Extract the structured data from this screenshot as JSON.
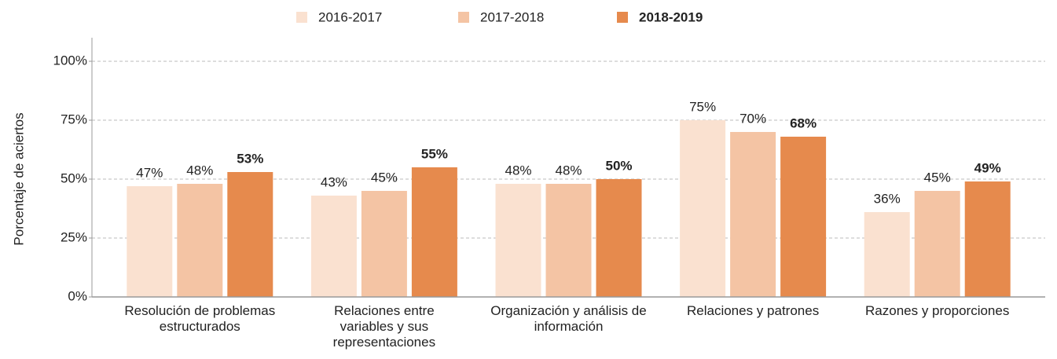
{
  "chart_data": {
    "type": "bar",
    "y_label": "Porcentaje de aciertos",
    "categories": [
      "Resolución de problemas estructurados",
      "Relaciones entre variables y sus representaciones",
      "Organización y análisis de información",
      "Relaciones y patrones",
      "Razones y proporciones"
    ],
    "series": [
      {
        "name": "2016-2017",
        "color": "#fae1d0",
        "bold": false,
        "values": [
          47,
          43,
          48,
          75,
          36
        ],
        "value_labels": [
          "47%",
          "43%",
          "48%",
          "75%",
          "36%"
        ]
      },
      {
        "name": "2017-2018",
        "color": "#f4c4a4",
        "bold": false,
        "values": [
          48,
          45,
          48,
          70,
          45
        ],
        "value_labels": [
          "48%",
          "45%",
          "48%",
          "70%",
          "45%"
        ]
      },
      {
        "name": "2018-2019",
        "color": "#e68a4d",
        "bold": true,
        "values": [
          53,
          55,
          50,
          68,
          49
        ],
        "value_labels": [
          "53%",
          "55%",
          "50%",
          "68%",
          "49%"
        ]
      }
    ],
    "ylim": [
      0,
      110
    ],
    "yticks": [
      {
        "value": 0,
        "label": "0%"
      },
      {
        "value": 25,
        "label": "25%"
      },
      {
        "value": 50,
        "label": "50%"
      },
      {
        "value": 75,
        "label": "75%"
      },
      {
        "value": 100,
        "label": "100%"
      }
    ],
    "grid": true,
    "legend": "top"
  }
}
